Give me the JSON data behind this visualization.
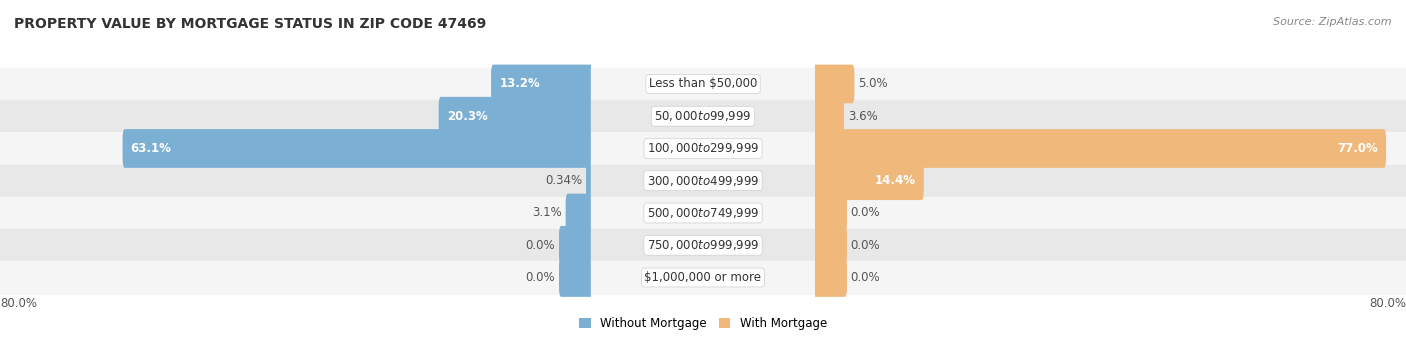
{
  "title": "PROPERTY VALUE BY MORTGAGE STATUS IN ZIP CODE 47469",
  "source": "Source: ZipAtlas.com",
  "categories": [
    "Less than $50,000",
    "$50,000 to $99,999",
    "$100,000 to $299,999",
    "$300,000 to $499,999",
    "$500,000 to $749,999",
    "$750,000 to $999,999",
    "$1,000,000 or more"
  ],
  "without_mortgage": [
    13.2,
    20.3,
    63.1,
    0.34,
    3.1,
    0.0,
    0.0
  ],
  "with_mortgage": [
    5.0,
    3.6,
    77.0,
    14.4,
    0.0,
    0.0,
    0.0
  ],
  "without_mortgage_labels": [
    "13.2%",
    "20.3%",
    "63.1%",
    "0.34%",
    "3.1%",
    "0.0%",
    "0.0%"
  ],
  "with_mortgage_labels": [
    "5.0%",
    "3.6%",
    "77.0%",
    "14.4%",
    "0.0%",
    "0.0%",
    "0.0%"
  ],
  "without_mortgage_color": "#7bafd4",
  "with_mortgage_color": "#f0b87a",
  "row_bg_light": "#f5f5f5",
  "row_bg_dark": "#e8e8e8",
  "max_val": 80.0,
  "stub_val": 4.0,
  "legend_without": "Without Mortgage",
  "legend_with": "With Mortgage",
  "title_fontsize": 10,
  "source_fontsize": 8,
  "label_fontsize": 8.5,
  "cat_fontsize": 8.5,
  "tick_fontsize": 8.5
}
